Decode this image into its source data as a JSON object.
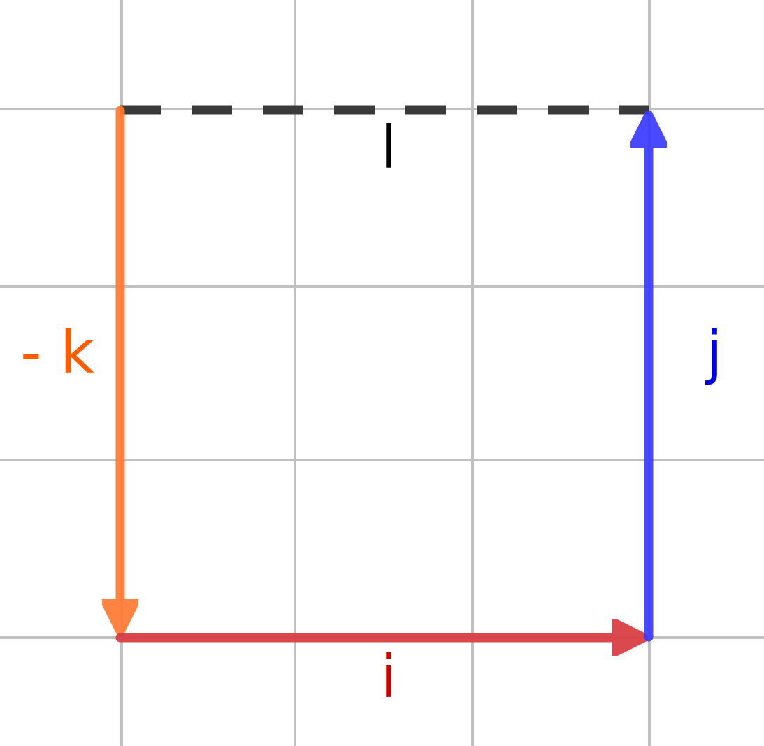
{
  "colors": {
    "grid": "#c0c0c0",
    "background": "#ffffff"
  },
  "vectors": [
    {
      "id": "l",
      "label": "l",
      "color": "#3a3a3a",
      "label_color": "#000000",
      "dashed": true,
      "arrow": false
    },
    {
      "id": "j",
      "label": "j",
      "color": "#3a3aff",
      "label_color": "#0000e6",
      "dashed": false,
      "arrow": true
    },
    {
      "id": "k",
      "label": "- k",
      "color": "#ff7a33",
      "label_color": "#ff5c00",
      "dashed": false,
      "arrow": true
    },
    {
      "id": "i",
      "label": "i",
      "color": "#d93a40",
      "label_color": "#cc0000",
      "dashed": false,
      "arrow": true
    }
  ]
}
